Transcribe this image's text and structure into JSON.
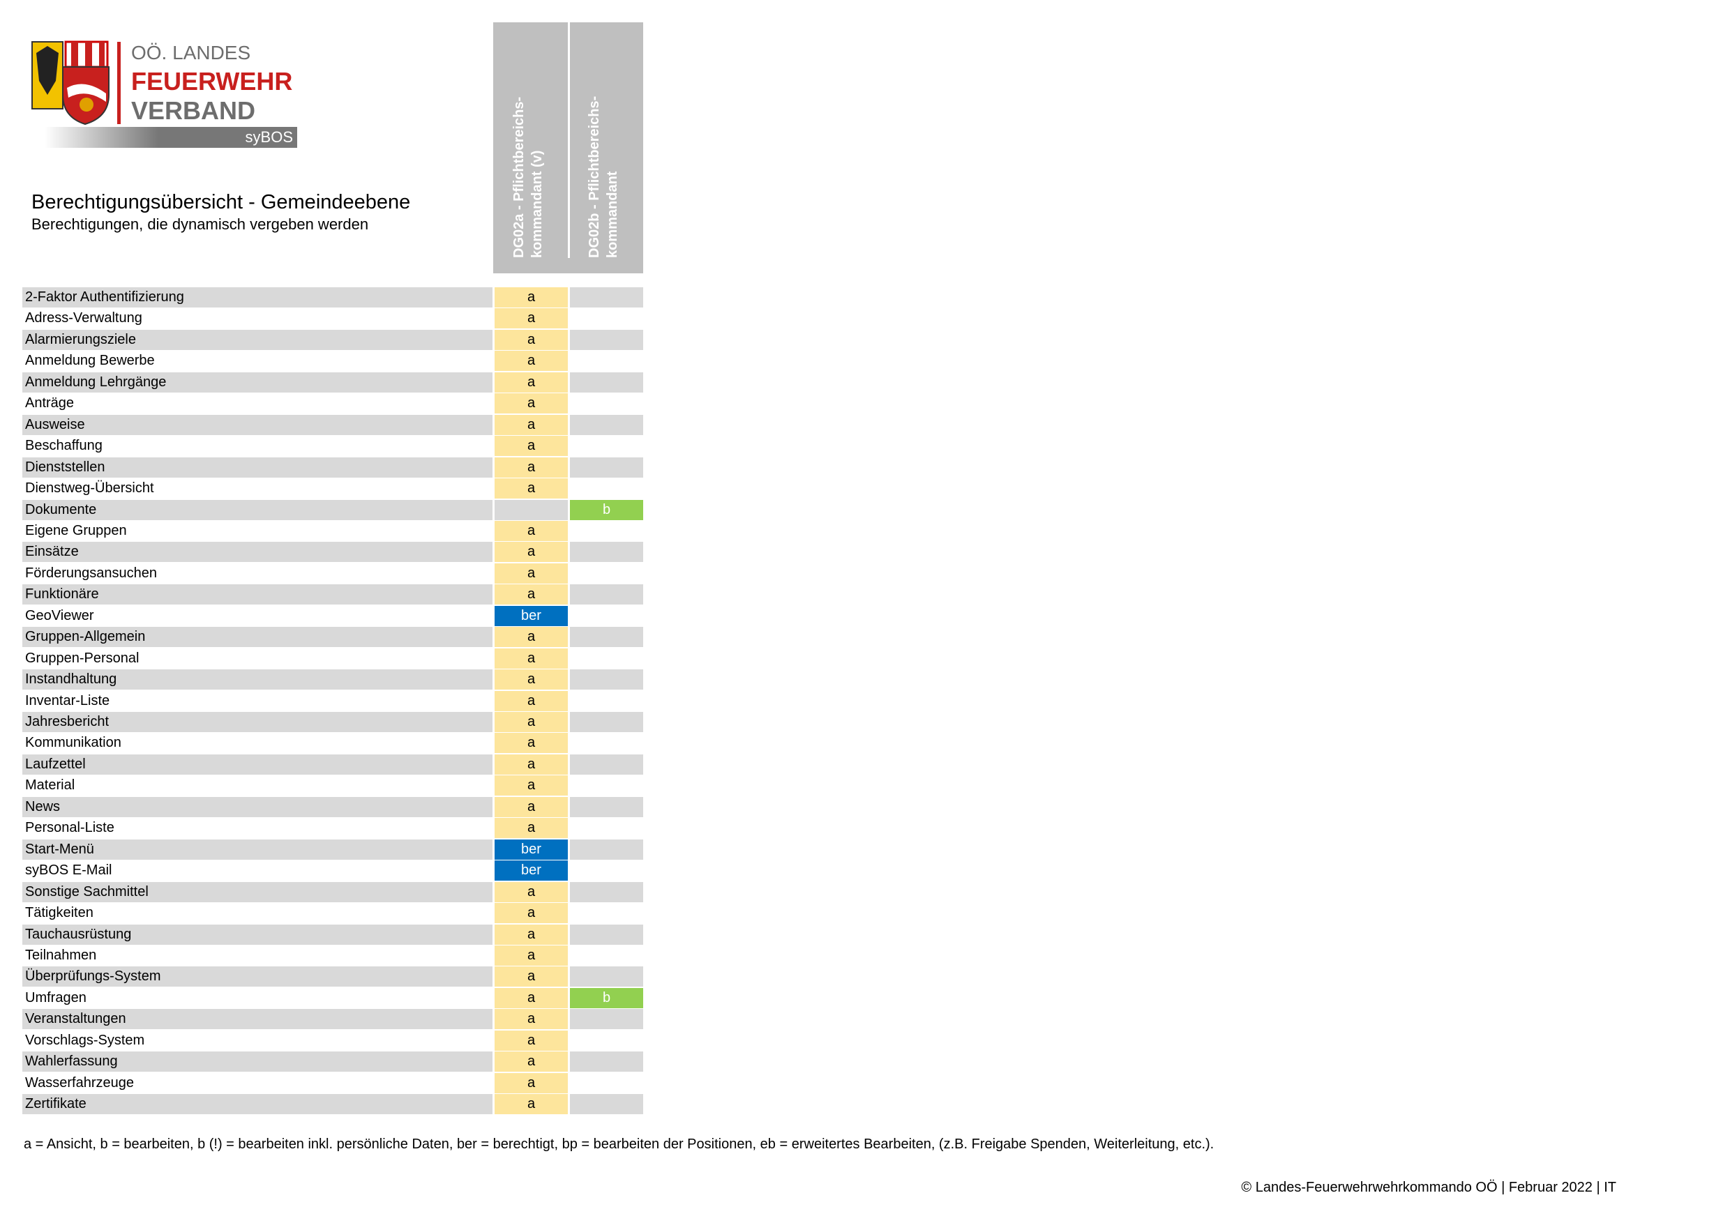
{
  "header": {
    "logo": {
      "line1": "OÖ. LANDES",
      "line2": "FEUERWEHR",
      "line3": "VERBAND",
      "product": "syBOS"
    },
    "title": "Berechtigungsübersicht - Gemeindeebene",
    "subtitle": "Berechtigungen, die dynamisch vergeben werden"
  },
  "table": {
    "columns": [
      [
        "DG02a - Pflichtbereichs-",
        "kommandant (v)"
      ],
      [
        "DG02b - Pflichtbereichs-",
        "kommandant"
      ]
    ],
    "rows": [
      [
        "2-Faktor Authentifizierung",
        "a",
        null
      ],
      [
        "Adress-Verwaltung",
        "a",
        null
      ],
      [
        "Alarmierungsziele",
        "a",
        null
      ],
      [
        "Anmeldung Bewerbe",
        "a",
        null
      ],
      [
        "Anmeldung Lehrgänge",
        "a",
        null
      ],
      [
        "Anträge",
        "a",
        null
      ],
      [
        "Ausweise",
        "a",
        null
      ],
      [
        "Beschaffung",
        "a",
        null
      ],
      [
        "Dienststellen",
        "a",
        null
      ],
      [
        "Dienstweg-Übersicht",
        "a",
        null
      ],
      [
        "Dokumente",
        null,
        "b"
      ],
      [
        "Eigene Gruppen",
        "a",
        null
      ],
      [
        "Einsätze",
        "a",
        null
      ],
      [
        "Förderungsansuchen",
        "a",
        null
      ],
      [
        "Funktionäre",
        "a",
        null
      ],
      [
        "GeoViewer",
        "ber",
        null
      ],
      [
        "Gruppen-Allgemein",
        "a",
        null
      ],
      [
        "Gruppen-Personal",
        "a",
        null
      ],
      [
        "Instandhaltung",
        "a",
        null
      ],
      [
        "Inventar-Liste",
        "a",
        null
      ],
      [
        "Jahresbericht",
        "a",
        null
      ],
      [
        "Kommunikation",
        "a",
        null
      ],
      [
        "Laufzettel",
        "a",
        null
      ],
      [
        "Material",
        "a",
        null
      ],
      [
        "News",
        "a",
        null
      ],
      [
        "Personal-Liste",
        "a",
        null
      ],
      [
        "Start-Menü",
        "ber",
        null
      ],
      [
        "syBOS E-Mail",
        "ber",
        null
      ],
      [
        "Sonstige Sachmittel",
        "a",
        null
      ],
      [
        "Tätigkeiten",
        "a",
        null
      ],
      [
        "Tauchausrüstung",
        "a",
        null
      ],
      [
        "Teilnahmen",
        "a",
        null
      ],
      [
        "Überprüfungs-System",
        "a",
        null
      ],
      [
        "Umfragen",
        "a",
        "b"
      ],
      [
        "Veranstaltungen",
        "a",
        null
      ],
      [
        "Vorschlags-System",
        "a",
        null
      ],
      [
        "Wahlerfassung",
        "a",
        null
      ],
      [
        "Wasserfahrzeuge",
        "a",
        null
      ],
      [
        "Zertifikate",
        "a",
        null
      ]
    ]
  },
  "legend": "a = Ansicht, b = bearbeiten, b (!) = bearbeiten inkl. persönliche Daten, ber = berechtigt, bp = bearbeiten der Positionen, eb = erweitertes Bearbeiten, (z.B. Freigabe Spenden, Weiterleitung, etc.).",
  "footer": "© Landes-Feuerwehrwehrkommando OÖ | Februar 2022 | IT"
}
